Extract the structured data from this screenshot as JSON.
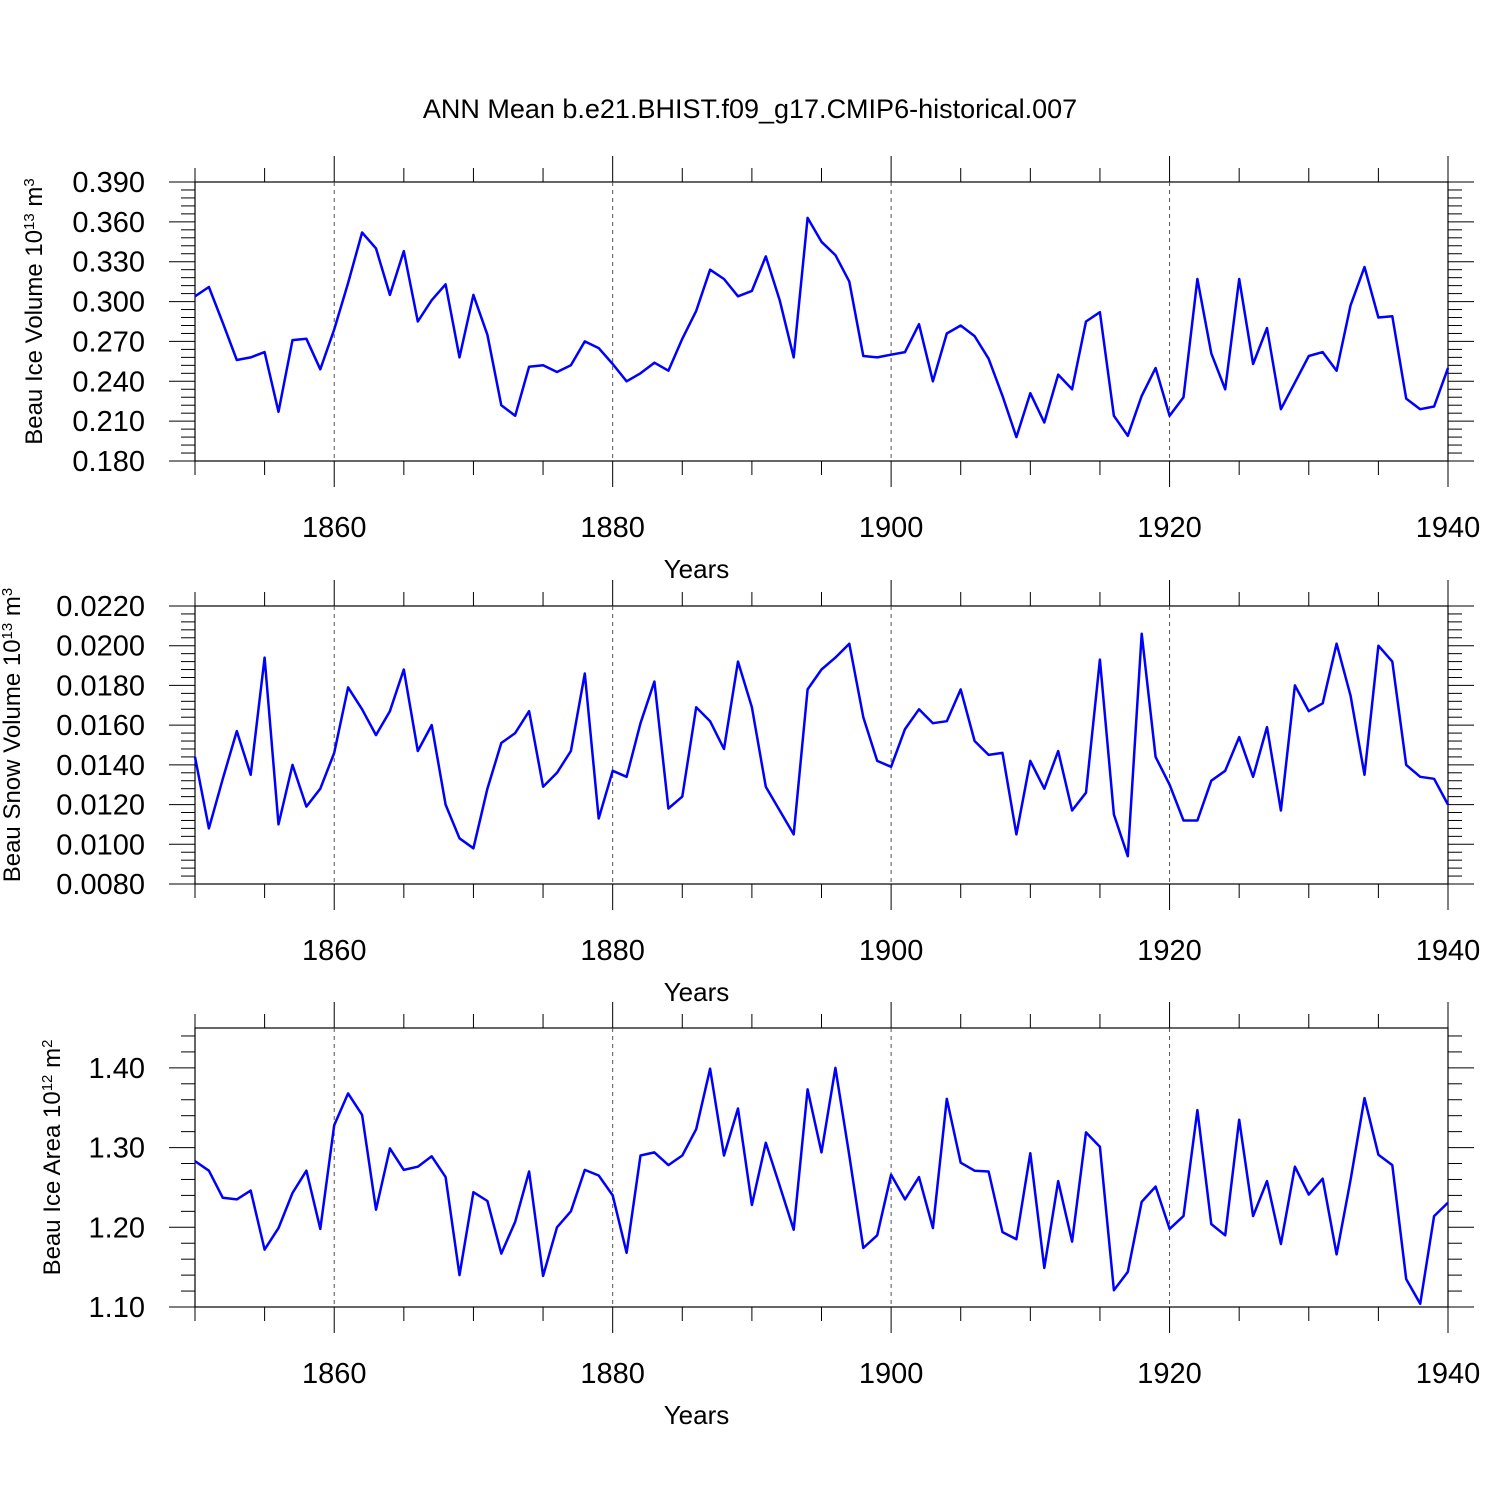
{
  "title": "ANN Mean b.e21.BHIST.f09_g17.CMIP6-historical.007",
  "colors": {
    "line": "#0000ff",
    "axis": "#000000"
  },
  "chart_data": [
    {
      "type": "line",
      "ylabel": {
        "text": "Beau Ice Volume 10",
        "sup": "13",
        "unit": " m",
        "unit_sup": "3"
      },
      "xlabel": "Years",
      "xlim": [
        1850,
        1940
      ],
      "ylim": [
        0.18,
        0.39
      ],
      "xticks": [
        1860,
        1880,
        1900,
        1920,
        1940
      ],
      "xtick_labels": [
        "1860",
        "1880",
        "1900",
        "1920",
        "1940"
      ],
      "yticks": [
        0.18,
        0.21,
        0.24,
        0.27,
        0.3,
        0.33,
        0.36,
        0.39
      ],
      "ytick_labels": [
        "0.180",
        "0.210",
        "0.240",
        "0.270",
        "0.300",
        "0.330",
        "0.360",
        "0.390"
      ],
      "grid_x": true,
      "x_start": 1850,
      "series": [
        {
          "name": "Beau Ice Volume",
          "values": [
            0.304,
            0.311,
            0.284,
            0.256,
            0.258,
            0.262,
            0.217,
            0.271,
            0.272,
            0.249,
            0.279,
            0.314,
            0.352,
            0.34,
            0.305,
            0.338,
            0.285,
            0.301,
            0.313,
            0.258,
            0.305,
            0.275,
            0.222,
            0.214,
            0.251,
            0.252,
            0.247,
            0.252,
            0.27,
            0.265,
            0.253,
            0.24,
            0.246,
            0.254,
            0.248,
            0.272,
            0.293,
            0.324,
            0.317,
            0.304,
            0.308,
            0.334,
            0.301,
            0.258,
            0.363,
            0.345,
            0.335,
            0.315,
            0.259,
            0.258,
            0.26,
            0.262,
            0.283,
            0.24,
            0.276,
            0.282,
            0.274,
            0.257,
            0.229,
            0.198,
            0.231,
            0.209,
            0.245,
            0.234,
            0.285,
            0.292,
            0.214,
            0.199,
            0.229,
            0.25,
            0.214,
            0.228,
            0.317,
            0.261,
            0.234,
            0.317,
            0.253,
            0.28,
            0.219,
            0.239,
            0.259,
            0.262,
            0.248,
            0.297,
            0.326,
            0.288,
            0.289,
            0.227,
            0.219,
            0.221,
            0.25
          ]
        }
      ]
    },
    {
      "type": "line",
      "ylabel": {
        "text": "Beau Snow Volume 10",
        "sup": "13",
        "unit": " m",
        "unit_sup": "3"
      },
      "xlabel": "Years",
      "xlim": [
        1850,
        1940
      ],
      "ylim": [
        0.008,
        0.022
      ],
      "xticks": [
        1860,
        1880,
        1900,
        1920,
        1940
      ],
      "xtick_labels": [
        "1860",
        "1880",
        "1900",
        "1920",
        "1940"
      ],
      "yticks": [
        0.008,
        0.01,
        0.012,
        0.014,
        0.016,
        0.018,
        0.02,
        0.022
      ],
      "ytick_labels": [
        "0.0080",
        "0.0100",
        "0.0120",
        "0.0140",
        "0.0160",
        "0.0180",
        "0.0200",
        "0.0220"
      ],
      "grid_x": true,
      "x_start": 1850,
      "series": [
        {
          "name": "Beau Snow Volume",
          "values": [
            0.0144,
            0.0108,
            0.0133,
            0.0157,
            0.0135,
            0.0194,
            0.011,
            0.014,
            0.0119,
            0.0128,
            0.0146,
            0.0179,
            0.0168,
            0.0155,
            0.0167,
            0.0188,
            0.0147,
            0.016,
            0.012,
            0.0103,
            0.0098,
            0.0128,
            0.0151,
            0.0156,
            0.0167,
            0.0129,
            0.0136,
            0.0147,
            0.0186,
            0.0113,
            0.0137,
            0.0134,
            0.0161,
            0.0182,
            0.0118,
            0.0124,
            0.0169,
            0.0162,
            0.0148,
            0.0192,
            0.0169,
            0.0129,
            0.0117,
            0.0105,
            0.0178,
            0.0188,
            0.0194,
            0.0201,
            0.0164,
            0.0142,
            0.0139,
            0.0158,
            0.0168,
            0.0161,
            0.0162,
            0.0178,
            0.0152,
            0.0145,
            0.0146,
            0.0105,
            0.0142,
            0.0128,
            0.0147,
            0.0117,
            0.0126,
            0.0193,
            0.0115,
            0.0094,
            0.0206,
            0.0144,
            0.013,
            0.0112,
            0.0112,
            0.0132,
            0.0137,
            0.0154,
            0.0134,
            0.0159,
            0.0117,
            0.018,
            0.0167,
            0.0171,
            0.0201,
            0.0175,
            0.0135,
            0.02,
            0.0192,
            0.014,
            0.0134,
            0.0133,
            0.012
          ]
        }
      ]
    },
    {
      "type": "line",
      "ylabel": {
        "text": "Beau Ice Area 10",
        "sup": "12",
        "unit": " m",
        "unit_sup": "2"
      },
      "xlabel": "Years",
      "xlim": [
        1850,
        1940
      ],
      "ylim": [
        1.1,
        1.45
      ],
      "xticks": [
        1860,
        1880,
        1900,
        1920,
        1940
      ],
      "xtick_labels": [
        "1860",
        "1880",
        "1900",
        "1920",
        "1940"
      ],
      "yticks": [
        1.1,
        1.2,
        1.3,
        1.4
      ],
      "ytick_labels": [
        "1.10",
        "1.20",
        "1.30",
        "1.40"
      ],
      "grid_x": true,
      "x_start": 1850,
      "series": [
        {
          "name": "Beau Ice Area",
          "values": [
            1.283,
            1.271,
            1.237,
            1.235,
            1.246,
            1.172,
            1.199,
            1.243,
            1.271,
            1.198,
            1.328,
            1.368,
            1.341,
            1.222,
            1.299,
            1.272,
            1.276,
            1.289,
            1.263,
            1.14,
            1.244,
            1.233,
            1.167,
            1.207,
            1.27,
            1.139,
            1.2,
            1.22,
            1.272,
            1.265,
            1.24,
            1.168,
            1.29,
            1.294,
            1.278,
            1.29,
            1.323,
            1.399,
            1.29,
            1.349,
            1.228,
            1.306,
            1.252,
            1.197,
            1.373,
            1.294,
            1.4,
            1.29,
            1.174,
            1.19,
            1.266,
            1.235,
            1.263,
            1.199,
            1.361,
            1.281,
            1.271,
            1.27,
            1.194,
            1.185,
            1.293,
            1.149,
            1.258,
            1.182,
            1.319,
            1.301,
            1.121,
            1.144,
            1.232,
            1.251,
            1.198,
            1.214,
            1.347,
            1.204,
            1.19,
            1.335,
            1.214,
            1.258,
            1.179,
            1.276,
            1.241,
            1.261,
            1.166,
            1.259,
            1.362,
            1.291,
            1.278,
            1.135,
            1.104,
            1.214,
            1.231
          ]
        }
      ]
    }
  ]
}
